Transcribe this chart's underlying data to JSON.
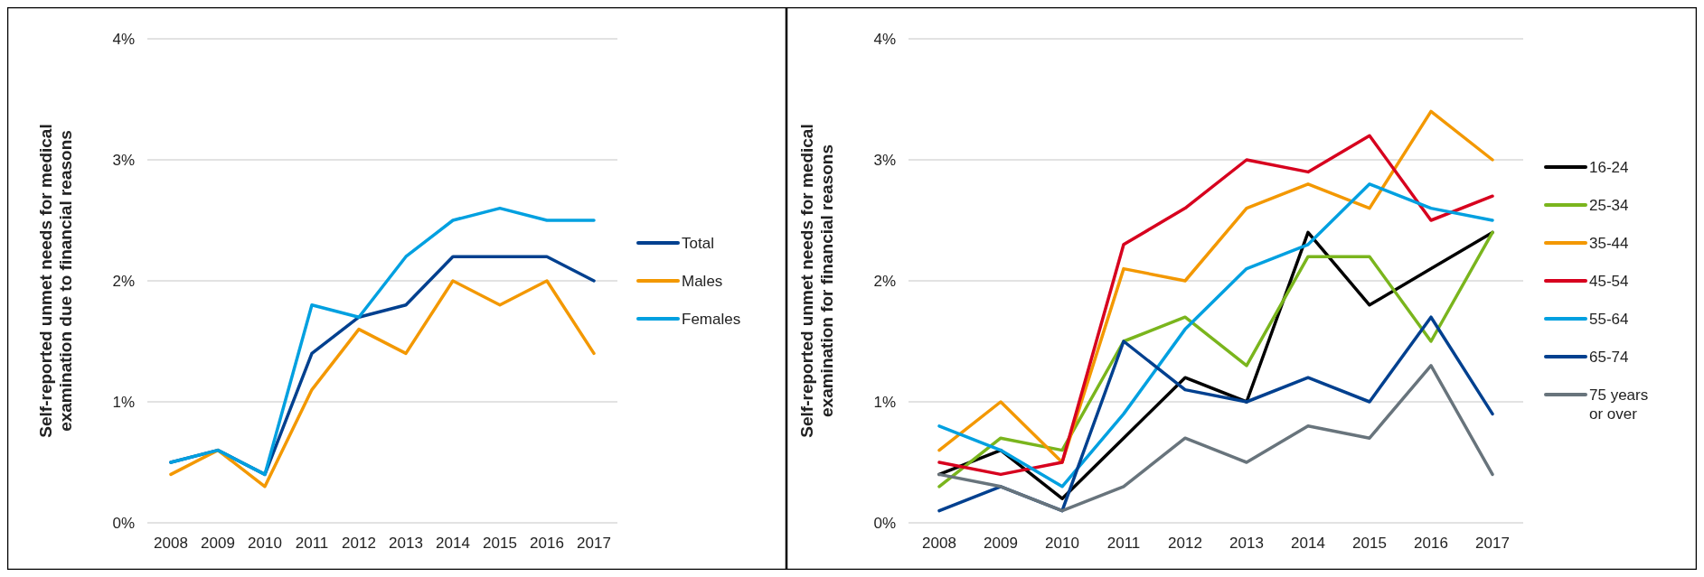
{
  "chart_data": [
    {
      "type": "line",
      "ylabel": "Self-reported unmet needs for medical examination due to financial reasons",
      "categories": [
        "2008",
        "2009",
        "2010",
        "2011",
        "2012",
        "2013",
        "2014",
        "2015",
        "2016",
        "2017"
      ],
      "ylim": [
        0,
        4
      ],
      "yticks": [
        {
          "value": 0,
          "label": "0%"
        },
        {
          "value": 1,
          "label": "1%"
        },
        {
          "value": 2,
          "label": "2%"
        },
        {
          "value": 3,
          "label": "3%"
        },
        {
          "value": 4,
          "label": "4%"
        }
      ],
      "grid": "y",
      "legend": "right",
      "marker": "none",
      "line_style": "solid",
      "series": [
        {
          "name": "Total",
          "color": "#00408f",
          "values": [
            0.5,
            0.6,
            0.4,
            1.4,
            1.7,
            1.8,
            2.2,
            2.2,
            2.2,
            2.0
          ]
        },
        {
          "name": "Males",
          "color": "#f39800",
          "values": [
            0.4,
            0.6,
            0.3,
            1.1,
            1.6,
            1.4,
            2.0,
            1.8,
            2.0,
            1.4
          ]
        },
        {
          "name": "Females",
          "color": "#00a0e0",
          "values": [
            0.5,
            0.6,
            0.4,
            1.8,
            1.7,
            2.2,
            2.5,
            2.6,
            2.5,
            2.5
          ]
        }
      ]
    },
    {
      "type": "line",
      "ylabel": "Self-reported unmet needs for medical examination for financial reasons",
      "categories": [
        "2008",
        "2009",
        "2010",
        "2011",
        "2012",
        "2013",
        "2014",
        "2015",
        "2016",
        "2017"
      ],
      "ylim": [
        0,
        4
      ],
      "yticks": [
        {
          "value": 0,
          "label": "0%"
        },
        {
          "value": 1,
          "label": "1%"
        },
        {
          "value": 2,
          "label": "2%"
        },
        {
          "value": 3,
          "label": "3%"
        },
        {
          "value": 4,
          "label": "4%"
        }
      ],
      "grid": "y",
      "legend": "right",
      "marker": "none",
      "line_style": "solid",
      "series": [
        {
          "name": "16-24",
          "color": "#000000",
          "values": [
            0.4,
            0.6,
            0.2,
            0.7,
            1.2,
            1.0,
            2.4,
            1.8,
            2.1,
            2.4
          ]
        },
        {
          "name": "25-34",
          "color": "#7ab51d",
          "values": [
            0.3,
            0.7,
            0.6,
            1.5,
            1.7,
            1.3,
            2.2,
            2.2,
            1.5,
            2.4
          ]
        },
        {
          "name": "35-44",
          "color": "#f39800",
          "values": [
            0.6,
            1.0,
            0.5,
            2.1,
            2.0,
            2.6,
            2.8,
            2.6,
            3.4,
            3.0
          ]
        },
        {
          "name": "45-54",
          "color": "#d7001e",
          "values": [
            0.5,
            0.4,
            0.5,
            2.3,
            2.6,
            3.0,
            2.9,
            3.2,
            2.5,
            2.7
          ]
        },
        {
          "name": "55-64",
          "color": "#00a0e0",
          "values": [
            0.8,
            0.6,
            0.3,
            0.9,
            1.6,
            2.1,
            2.3,
            2.8,
            2.6,
            2.5
          ]
        },
        {
          "name": "65-74",
          "color": "#00408f",
          "values": [
            0.1,
            0.3,
            0.1,
            1.5,
            1.1,
            1.0,
            1.2,
            1.0,
            1.7,
            0.9
          ]
        },
        {
          "name": "75 years or over",
          "color": "#68747c",
          "values": [
            0.4,
            0.3,
            0.1,
            0.3,
            0.7,
            0.5,
            0.8,
            0.7,
            1.3,
            0.4
          ]
        }
      ]
    }
  ]
}
